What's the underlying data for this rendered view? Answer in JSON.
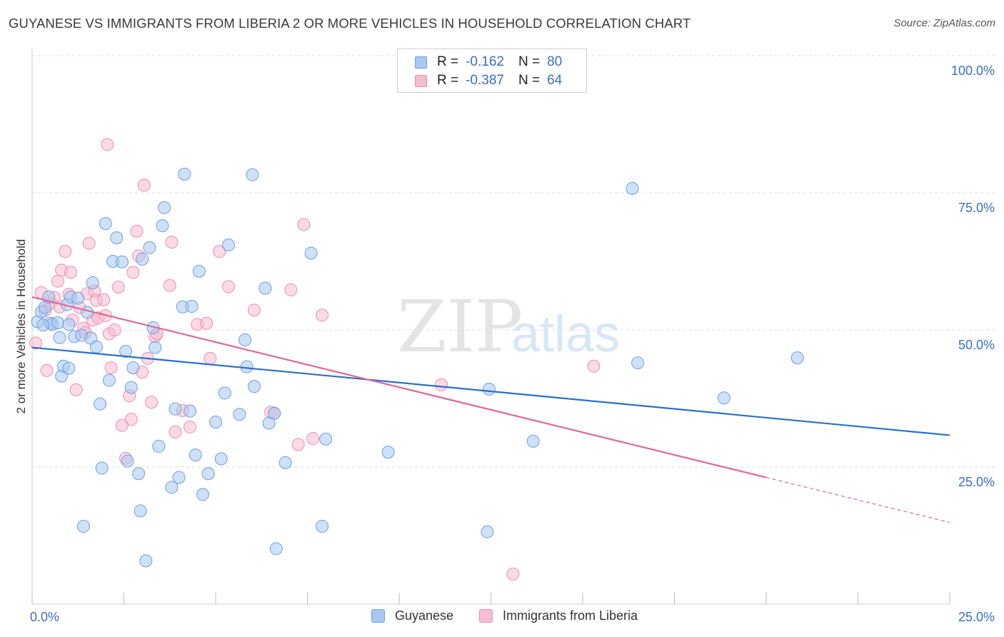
{
  "title": "GUYANESE VS IMMIGRANTS FROM LIBERIA 2 OR MORE VEHICLES IN HOUSEHOLD CORRELATION CHART",
  "source": "Source: ZipAtlas.com",
  "watermark": {
    "zip": "ZIP",
    "atlas": "atlas"
  },
  "stats": {
    "r_label": "R =",
    "n_label": "N =",
    "blue": {
      "r": "-0.162",
      "n": "80"
    },
    "pink": {
      "r": "-0.387",
      "n": "64"
    }
  },
  "legend": {
    "blue": "Guyanese",
    "pink": "Immigrants from Liberia"
  },
  "colors": {
    "blue_fill": "#a8c8f0",
    "blue_stroke": "#6f9fe0",
    "blue_line": "#2a6fce",
    "pink_fill": "#f7bcd0",
    "pink_stroke": "#ec8fb0",
    "pink_line": "#e0679a",
    "tick_label": "#3a6fc4",
    "grid": "#dcdcdc"
  },
  "chart_data": {
    "type": "scatter",
    "title": "GUYANESE VS IMMIGRANTS FROM LIBERIA 2 OR MORE VEHICLES IN HOUSEHOLD CORRELATION CHART",
    "xlabel": "",
    "ylabel": "2 or more Vehicles in Household",
    "xlim": [
      0,
      25
    ],
    "ylim": [
      0,
      100
    ],
    "x_ticks": [
      "0.0%",
      "25.0%"
    ],
    "y_ticks": [
      {
        "value": 25,
        "label": "25.0%"
      },
      {
        "value": 50,
        "label": "50.0%"
      },
      {
        "value": 75,
        "label": "75.0%"
      },
      {
        "value": 100,
        "label": "100.0%"
      }
    ],
    "grid": true,
    "legend_position": "bottom-center",
    "series": [
      {
        "name": "Guyanese",
        "r": -0.162,
        "n": 80,
        "trend": {
          "x": [
            0,
            25
          ],
          "y": [
            46.8,
            30.8
          ]
        },
        "points": [
          [
            0.15,
            51.5
          ],
          [
            0.25,
            53.3
          ],
          [
            0.35,
            54.1
          ],
          [
            0.45,
            56.0
          ],
          [
            0.5,
            51.2
          ],
          [
            0.55,
            51.0
          ],
          [
            0.7,
            51.3
          ],
          [
            0.75,
            48.6
          ],
          [
            0.8,
            41.6
          ],
          [
            0.85,
            43.4
          ],
          [
            0.95,
            54.6
          ],
          [
            1.0,
            43.0
          ],
          [
            1.05,
            56.0
          ],
          [
            1.15,
            48.8
          ],
          [
            1.25,
            55.8
          ],
          [
            1.35,
            49.0
          ],
          [
            1.5,
            53.2
          ],
          [
            1.6,
            48.5
          ],
          [
            1.65,
            58.6
          ],
          [
            1.75,
            46.9
          ],
          [
            1.85,
            36.5
          ],
          [
            1.9,
            24.8
          ],
          [
            2.0,
            69.4
          ],
          [
            2.1,
            40.8
          ],
          [
            2.2,
            62.5
          ],
          [
            2.3,
            66.8
          ],
          [
            2.45,
            62.4
          ],
          [
            2.55,
            46.1
          ],
          [
            2.6,
            26.1
          ],
          [
            2.7,
            39.5
          ],
          [
            2.75,
            43.1
          ],
          [
            2.9,
            23.8
          ],
          [
            2.95,
            17.0
          ],
          [
            3.0,
            62.9
          ],
          [
            3.1,
            7.9
          ],
          [
            3.2,
            65.0
          ],
          [
            3.3,
            50.4
          ],
          [
            3.35,
            46.8
          ],
          [
            3.45,
            28.8
          ],
          [
            3.55,
            69.0
          ],
          [
            3.6,
            72.3
          ],
          [
            3.8,
            21.3
          ],
          [
            3.9,
            35.6
          ],
          [
            4.0,
            23.1
          ],
          [
            4.1,
            54.2
          ],
          [
            4.15,
            78.4
          ],
          [
            4.3,
            35.2
          ],
          [
            4.35,
            54.3
          ],
          [
            4.45,
            27.2
          ],
          [
            4.55,
            60.7
          ],
          [
            4.65,
            20.0
          ],
          [
            4.8,
            23.8
          ],
          [
            5.0,
            33.2
          ],
          [
            5.15,
            26.5
          ],
          [
            5.25,
            38.5
          ],
          [
            5.35,
            65.5
          ],
          [
            5.65,
            34.6
          ],
          [
            5.8,
            48.2
          ],
          [
            5.85,
            43.3
          ],
          [
            6.0,
            78.3
          ],
          [
            6.05,
            39.7
          ],
          [
            6.35,
            57.6
          ],
          [
            6.45,
            33.0
          ],
          [
            6.6,
            34.8
          ],
          [
            6.65,
            10.1
          ],
          [
            6.9,
            25.8
          ],
          [
            7.6,
            64.0
          ],
          [
            7.9,
            14.2
          ],
          [
            8.0,
            30.1
          ],
          [
            9.7,
            27.7
          ],
          [
            12.4,
            13.2
          ],
          [
            12.45,
            39.2
          ],
          [
            13.65,
            29.7
          ],
          [
            1.4,
            14.2
          ],
          [
            16.35,
            75.8
          ],
          [
            16.5,
            44.0
          ],
          [
            18.85,
            37.6
          ],
          [
            20.85,
            44.9
          ],
          [
            0.3,
            50.9
          ],
          [
            1.0,
            51.0
          ]
        ]
      },
      {
        "name": "Immigrants from Liberia",
        "r": -0.387,
        "n": 64,
        "trend": {
          "x": [
            0,
            20
          ],
          "y": [
            56.0,
            23.1
          ]
        },
        "trend_dashed": {
          "x": [
            20,
            25
          ],
          "y": [
            23.1,
            14.9
          ]
        },
        "points": [
          [
            0.1,
            47.6
          ],
          [
            0.25,
            56.8
          ],
          [
            0.35,
            53.5
          ],
          [
            0.4,
            42.6
          ],
          [
            0.5,
            54.9
          ],
          [
            0.6,
            55.9
          ],
          [
            0.75,
            54.2
          ],
          [
            0.7,
            58.9
          ],
          [
            0.8,
            60.9
          ],
          [
            0.9,
            64.3
          ],
          [
            1.0,
            56.5
          ],
          [
            1.05,
            60.5
          ],
          [
            1.1,
            51.8
          ],
          [
            1.2,
            39.1
          ],
          [
            1.3,
            54.1
          ],
          [
            1.4,
            50.3
          ],
          [
            1.45,
            49.5
          ],
          [
            1.5,
            56.6
          ],
          [
            1.55,
            65.8
          ],
          [
            1.65,
            51.8
          ],
          [
            1.7,
            57.1
          ],
          [
            1.75,
            55.4
          ],
          [
            1.8,
            52.2
          ],
          [
            1.95,
            55.5
          ],
          [
            2.0,
            52.6
          ],
          [
            2.05,
            83.8
          ],
          [
            2.1,
            49.3
          ],
          [
            2.15,
            43.1
          ],
          [
            2.25,
            50.0
          ],
          [
            2.35,
            57.8
          ],
          [
            2.45,
            32.6
          ],
          [
            2.55,
            26.6
          ],
          [
            2.65,
            38.0
          ],
          [
            2.7,
            33.7
          ],
          [
            2.75,
            60.5
          ],
          [
            2.85,
            68.0
          ],
          [
            2.9,
            63.5
          ],
          [
            3.0,
            42.3
          ],
          [
            3.05,
            76.4
          ],
          [
            3.15,
            44.8
          ],
          [
            3.25,
            36.8
          ],
          [
            3.35,
            48.8
          ],
          [
            3.4,
            49.3
          ],
          [
            3.75,
            58.1
          ],
          [
            3.8,
            66.0
          ],
          [
            3.9,
            31.4
          ],
          [
            4.1,
            35.3
          ],
          [
            4.3,
            32.3
          ],
          [
            4.5,
            51.0
          ],
          [
            4.75,
            51.2
          ],
          [
            4.85,
            44.8
          ],
          [
            5.1,
            64.3
          ],
          [
            5.35,
            57.9
          ],
          [
            6.05,
            53.6
          ],
          [
            6.5,
            35.0
          ],
          [
            7.05,
            57.3
          ],
          [
            7.25,
            29.1
          ],
          [
            7.4,
            69.2
          ],
          [
            7.65,
            30.2
          ],
          [
            7.9,
            52.7
          ],
          [
            11.15,
            40.0
          ],
          [
            13.1,
            5.5
          ],
          [
            15.3,
            43.4
          ],
          [
            6.6,
            34.8
          ]
        ]
      }
    ]
  }
}
